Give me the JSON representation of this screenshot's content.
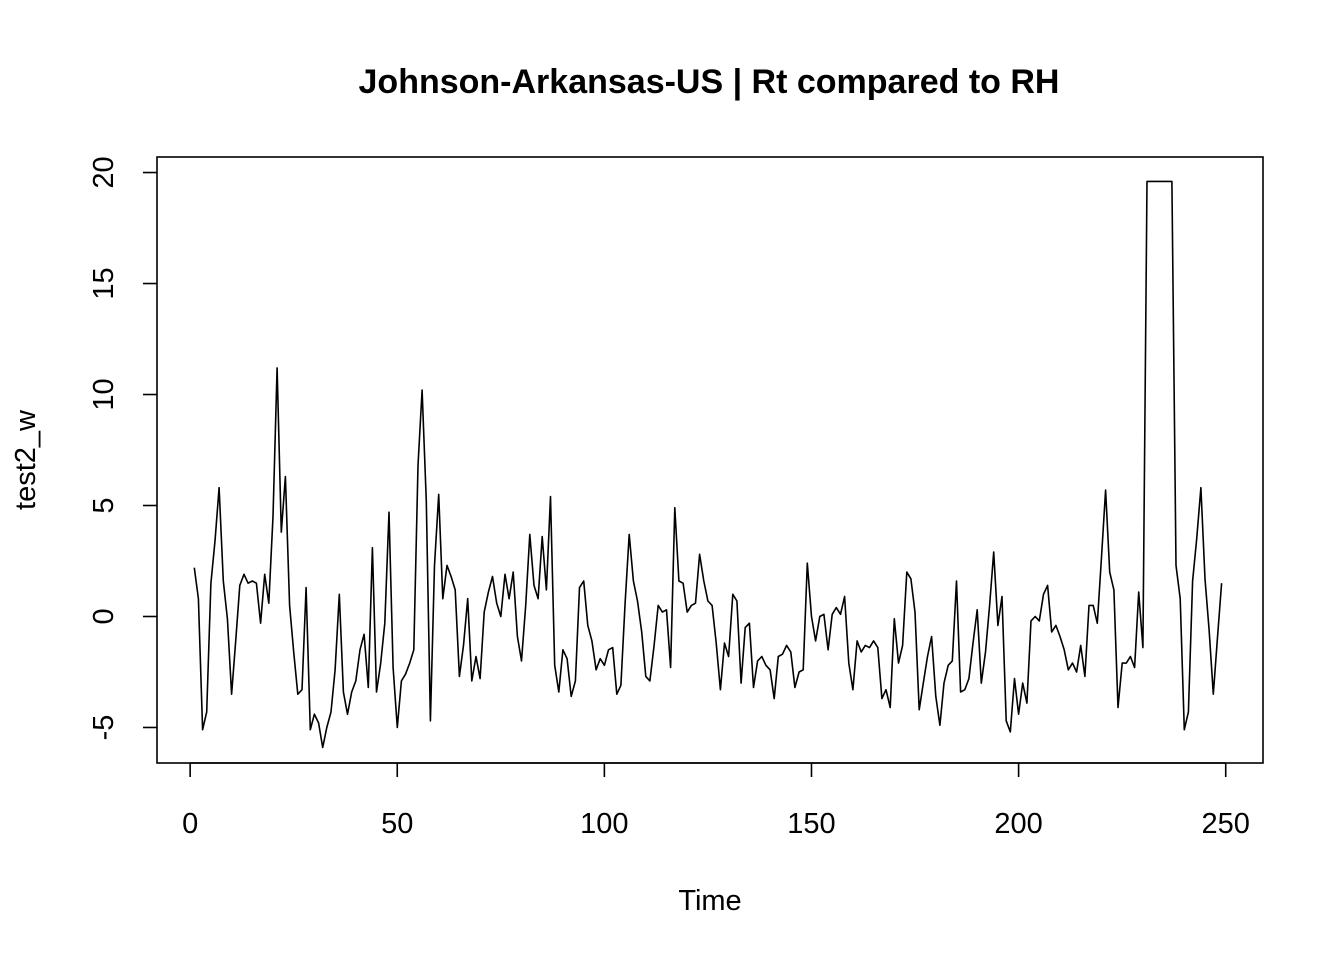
{
  "chart_data": {
    "type": "line",
    "title": "Johnson-Arkansas-US | Rt compared to RH",
    "xlabel": "Time",
    "ylabel": "test2_w",
    "xlim": [
      -8,
      259
    ],
    "ylim": [
      -6.6,
      20.7
    ],
    "x_ticks": [
      0,
      50,
      100,
      150,
      200,
      250
    ],
    "y_ticks": [
      -5,
      0,
      5,
      10,
      15,
      20
    ],
    "grid": false,
    "legend": "none",
    "line_color": "#000000",
    "series": [
      {
        "x_start": 1,
        "values": [
          2.2,
          0.8,
          -5.1,
          -4.3,
          1.5,
          3.4,
          5.8,
          1.6,
          -0.1,
          -3.5,
          -1.1,
          1.4,
          1.9,
          1.5,
          1.6,
          1.5,
          -0.3,
          1.9,
          0.6,
          4.5,
          11.2,
          3.8,
          6.3,
          0.5,
          -1.6,
          -3.5,
          -3.3,
          1.3,
          -5.1,
          -4.4,
          -4.8,
          -5.9,
          -5.0,
          -4.3,
          -2.4,
          1.0,
          -3.4,
          -4.4,
          -3.4,
          -2.9,
          -1.5,
          -0.8,
          -3.2,
          3.1,
          -3.4,
          -2.1,
          -0.3,
          4.7,
          -2.3,
          -5.0,
          -2.9,
          -2.6,
          -2.1,
          -1.5,
          6.8,
          10.2,
          5.2,
          -4.7,
          2.3,
          5.5,
          0.8,
          2.3,
          1.8,
          1.2,
          -2.7,
          -1.3,
          0.8,
          -2.9,
          -1.8,
          -2.8,
          0.2,
          1.1,
          1.8,
          0.6,
          0.0,
          1.9,
          0.8,
          2.0,
          -0.9,
          -2.0,
          0.5,
          3.7,
          1.4,
          0.8,
          3.6,
          1.2,
          5.4,
          -2.2,
          -3.4,
          -1.5,
          -1.9,
          -3.6,
          -2.9,
          1.3,
          1.6,
          -0.4,
          -1.1,
          -2.4,
          -1.9,
          -2.2,
          -1.5,
          -1.4,
          -3.5,
          -3.1,
          0.6,
          3.7,
          1.6,
          0.7,
          -0.7,
          -2.7,
          -2.9,
          -1.3,
          0.5,
          0.2,
          0.3,
          -2.3,
          4.9,
          1.6,
          1.5,
          0.2,
          0.5,
          0.6,
          2.8,
          1.6,
          0.7,
          0.5,
          -1.2,
          -3.3,
          -1.2,
          -1.8,
          1.0,
          0.7,
          -3.0,
          -0.5,
          -0.3,
          -3.2,
          -2.0,
          -1.8,
          -2.2,
          -2.4,
          -3.7,
          -1.8,
          -1.7,
          -1.3,
          -1.6,
          -3.2,
          -2.5,
          -2.4,
          2.4,
          0.0,
          -1.1,
          0.0,
          0.1,
          -1.5,
          0.1,
          0.4,
          0.1,
          0.9,
          -2.1,
          -3.3,
          -1.1,
          -1.6,
          -1.3,
          -1.4,
          -1.1,
          -1.4,
          -3.7,
          -3.3,
          -4.1,
          -0.1,
          -2.1,
          -1.3,
          2.0,
          1.7,
          0.2,
          -4.2,
          -3.0,
          -1.8,
          -0.9,
          -3.6,
          -4.9,
          -3.0,
          -2.2,
          -2.0,
          1.6,
          -3.4,
          -3.3,
          -2.8,
          -1.2,
          0.3,
          -3.0,
          -1.6,
          0.5,
          2.9,
          -0.4,
          0.9,
          -4.7,
          -5.2,
          -2.8,
          -4.4,
          -3.0,
          -3.9,
          -0.2,
          0.0,
          -0.2,
          1.0,
          1.4,
          -0.7,
          -0.4,
          -0.9,
          -1.5,
          -2.4,
          -2.1,
          -2.5,
          -1.3,
          -2.7,
          0.5,
          0.5,
          -0.3,
          2.6,
          5.7,
          2.0,
          1.2,
          -4.1,
          -2.1,
          -2.1,
          -1.8,
          -2.3,
          1.1,
          -1.4,
          19.6,
          19.6,
          19.6,
          19.6,
          19.6,
          19.6,
          19.6,
          2.3,
          0.8,
          -5.1,
          -4.3,
          1.6,
          3.5,
          5.8,
          1.7,
          -0.6,
          -3.5,
          -1.0,
          1.5
        ]
      }
    ]
  }
}
